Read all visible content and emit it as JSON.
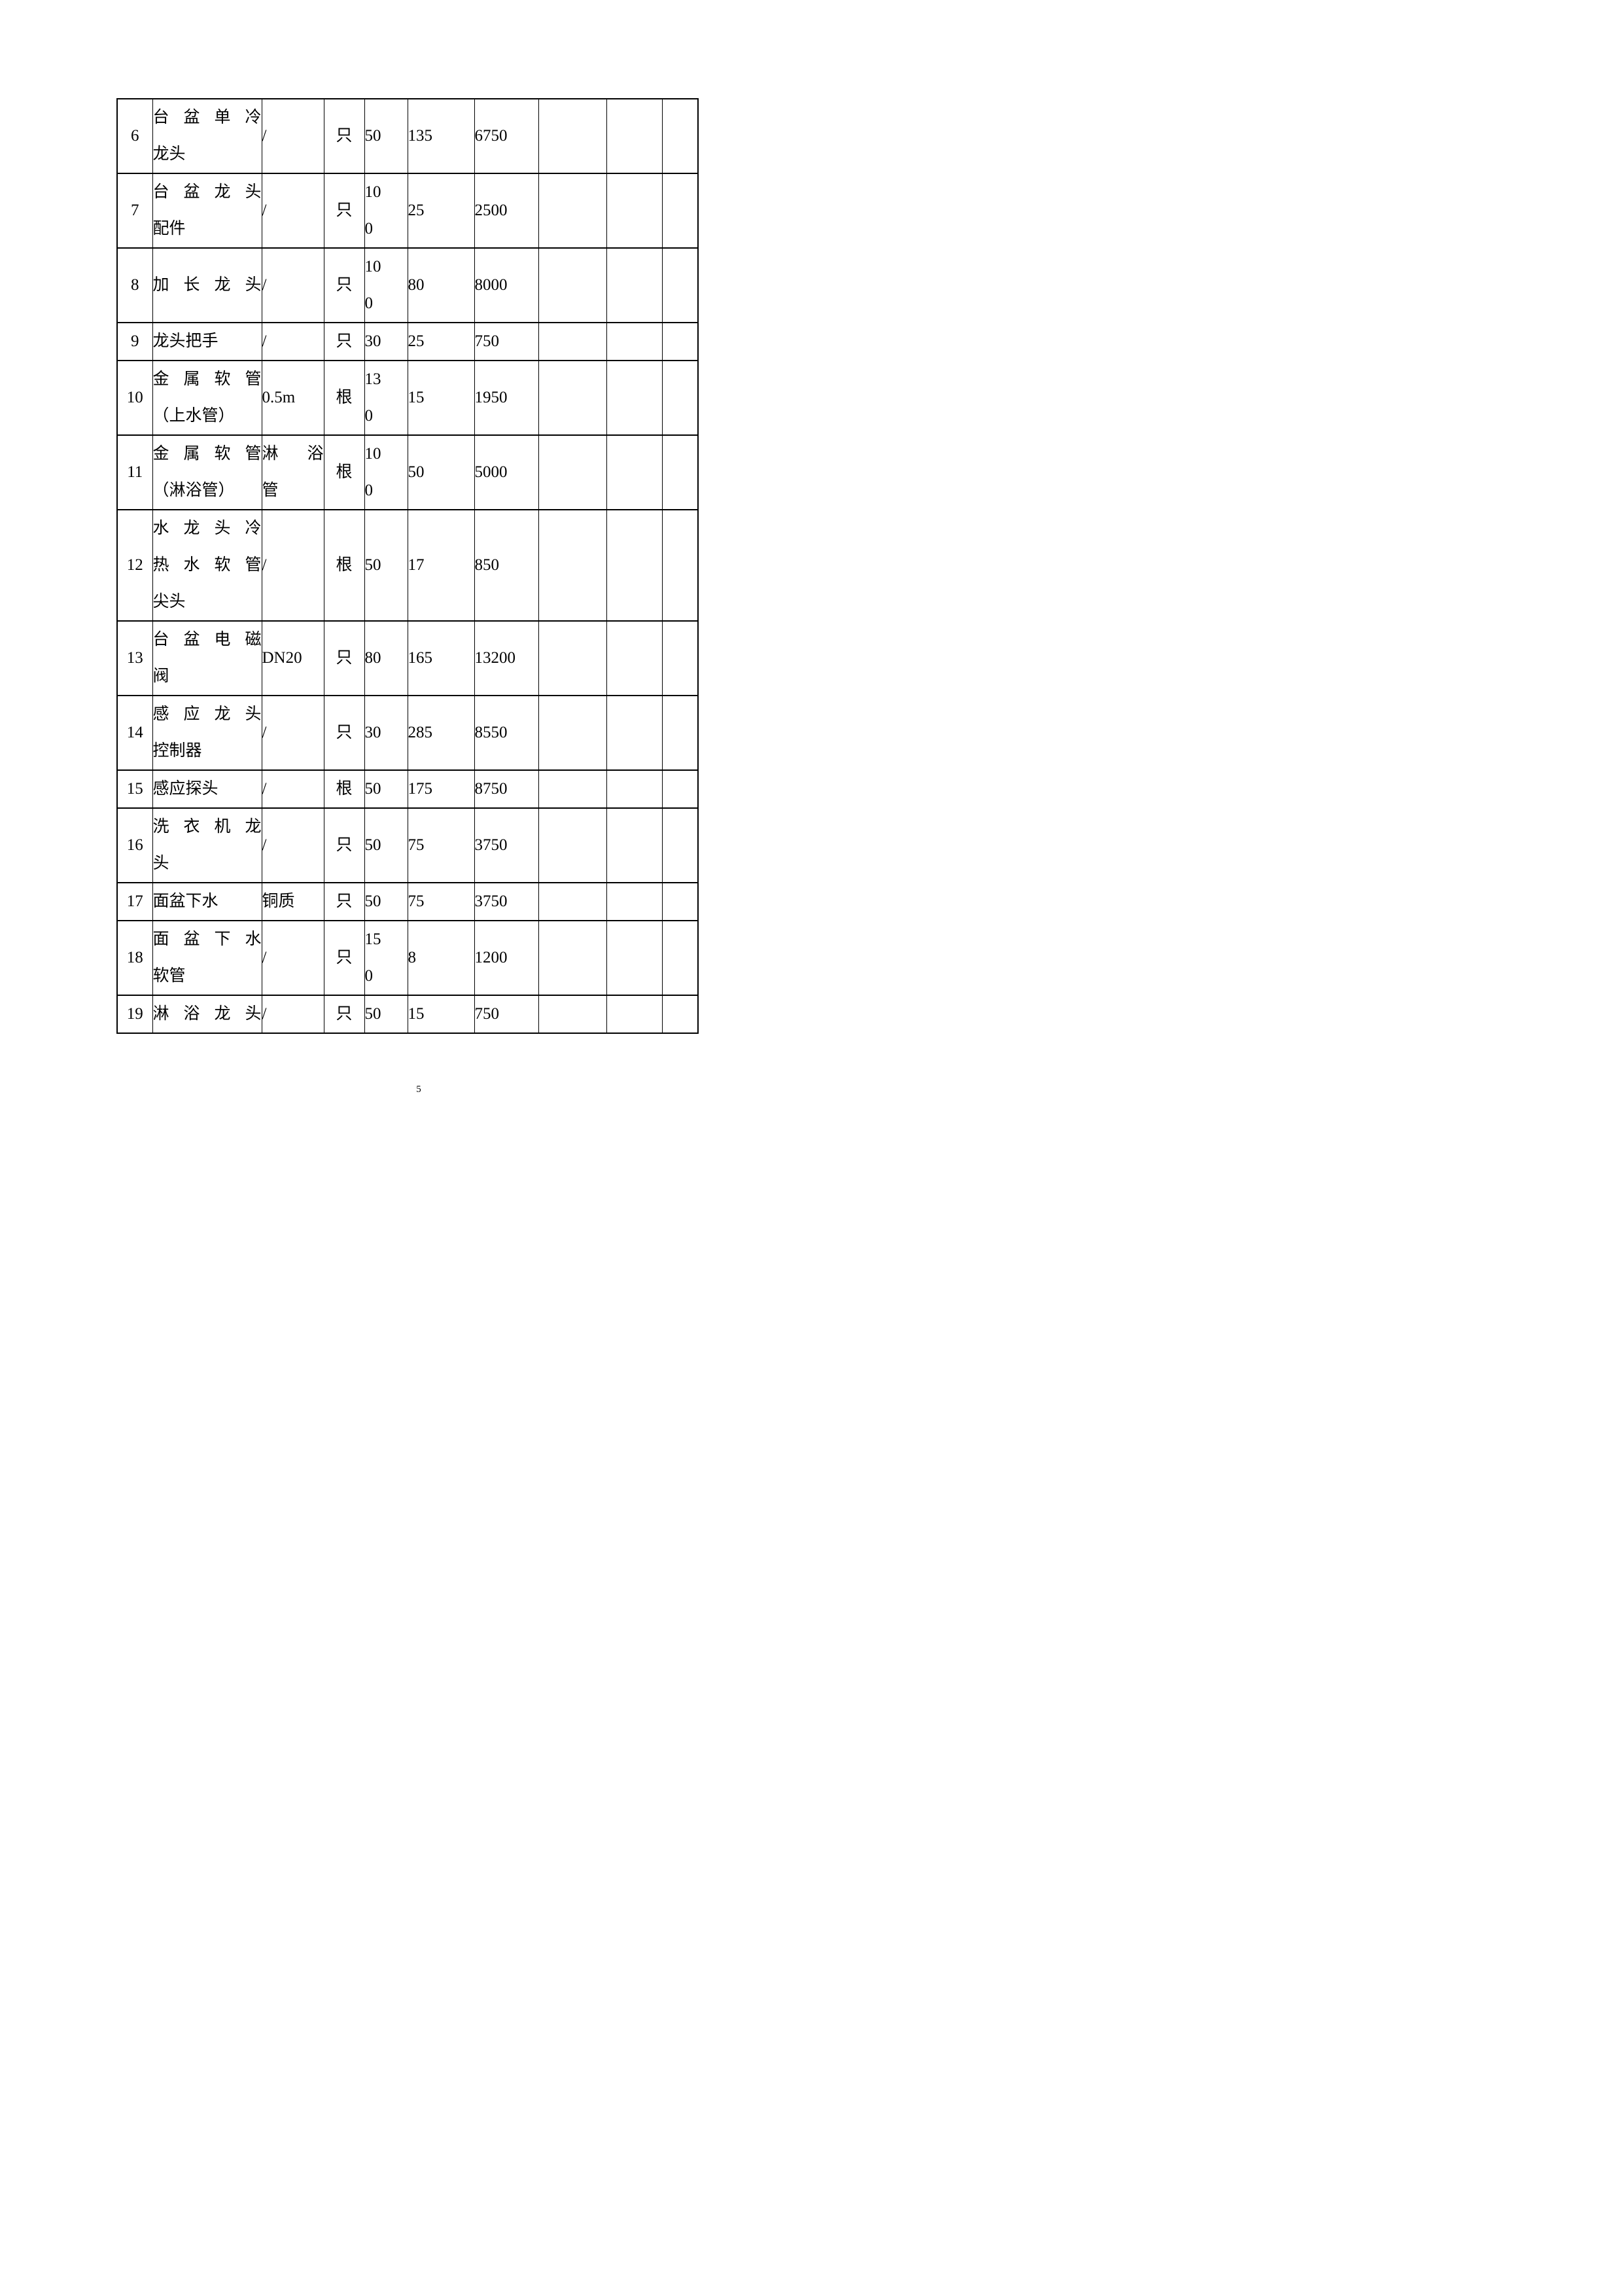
{
  "page": {
    "number": "5"
  },
  "table": {
    "rows": [
      {
        "no": "6",
        "name": [
          {
            "t": "台盆单冷",
            "j": true
          },
          {
            "t": "龙头"
          }
        ],
        "spec": [
          {
            "t": "/"
          }
        ],
        "unit": "只",
        "qty": [
          {
            "t": "50"
          }
        ],
        "unit_price": "135",
        "total": "6750"
      },
      {
        "no": "7",
        "name": [
          {
            "t": "台盆龙头",
            "j": true
          },
          {
            "t": "配件"
          }
        ],
        "spec": [
          {
            "t": "/"
          }
        ],
        "unit": "只",
        "qty": [
          {
            "t": "10"
          },
          {
            "t": "0"
          }
        ],
        "unit_price": "25",
        "total": "2500"
      },
      {
        "no": "8",
        "name": [
          {
            "t": "加长龙头",
            "j": true
          }
        ],
        "spec": [
          {
            "t": "/"
          }
        ],
        "unit": "只",
        "qty": [
          {
            "t": "10"
          },
          {
            "t": "0"
          }
        ],
        "unit_price": "80",
        "total": "8000"
      },
      {
        "no": "9",
        "name": [
          {
            "t": "龙头把手"
          }
        ],
        "spec": [
          {
            "t": "/"
          }
        ],
        "unit": "只",
        "qty": [
          {
            "t": "30"
          }
        ],
        "unit_price": "25",
        "total": "750"
      },
      {
        "no": "10",
        "name": [
          {
            "t": "金属软管",
            "j": true
          },
          {
            "t": "（上水管）"
          }
        ],
        "spec": [
          {
            "t": "0.5m"
          }
        ],
        "unit": "根",
        "qty": [
          {
            "t": "13"
          },
          {
            "t": "0"
          }
        ],
        "unit_price": "15",
        "total": "1950"
      },
      {
        "no": "11",
        "name": [
          {
            "t": "金属软管",
            "j": true
          },
          {
            "t": "（淋浴管）"
          }
        ],
        "spec": [
          {
            "t": "淋浴",
            "j": true
          },
          {
            "t": "管"
          }
        ],
        "unit": "根",
        "qty": [
          {
            "t": "10"
          },
          {
            "t": "0"
          }
        ],
        "unit_price": "50",
        "total": "5000"
      },
      {
        "no": "12",
        "name": [
          {
            "t": "水龙头冷",
            "j": true
          },
          {
            "t": "热水软管",
            "j": true
          },
          {
            "t": "尖头"
          }
        ],
        "spec": [
          {
            "t": "/"
          }
        ],
        "unit": "根",
        "qty": [
          {
            "t": "50"
          }
        ],
        "unit_price": "17",
        "total": "850"
      },
      {
        "no": "13",
        "name": [
          {
            "t": "台盆电磁",
            "j": true
          },
          {
            "t": "阀"
          }
        ],
        "spec": [
          {
            "t": "DN20"
          }
        ],
        "unit": "只",
        "qty": [
          {
            "t": "80"
          }
        ],
        "unit_price": "165",
        "total": "13200"
      },
      {
        "no": "14",
        "name": [
          {
            "t": "感应龙头",
            "j": true
          },
          {
            "t": "控制器"
          }
        ],
        "spec": [
          {
            "t": "/"
          }
        ],
        "unit": "只",
        "qty": [
          {
            "t": "30"
          }
        ],
        "unit_price": "285",
        "total": "8550"
      },
      {
        "no": "15",
        "name": [
          {
            "t": "感应探头"
          }
        ],
        "spec": [
          {
            "t": "/"
          }
        ],
        "unit": "根",
        "qty": [
          {
            "t": "50"
          }
        ],
        "unit_price": "175",
        "total": "8750"
      },
      {
        "no": "16",
        "name": [
          {
            "t": "洗衣机龙",
            "j": true
          },
          {
            "t": "头"
          }
        ],
        "spec": [
          {
            "t": "/"
          }
        ],
        "unit": "只",
        "qty": [
          {
            "t": "50"
          }
        ],
        "unit_price": "75",
        "total": "3750"
      },
      {
        "no": "17",
        "name": [
          {
            "t": "面盆下水"
          }
        ],
        "spec": [
          {
            "t": "铜质"
          }
        ],
        "unit": "只",
        "qty": [
          {
            "t": "50"
          }
        ],
        "unit_price": "75",
        "total": "3750"
      },
      {
        "no": "18",
        "name": [
          {
            "t": "面盆下水",
            "j": true
          },
          {
            "t": "软管"
          }
        ],
        "spec": [
          {
            "t": "/"
          }
        ],
        "unit": "只",
        "qty": [
          {
            "t": "15"
          },
          {
            "t": "0"
          }
        ],
        "unit_price": "8",
        "total": "1200"
      },
      {
        "no": "19",
        "name": [
          {
            "t": "淋浴龙头",
            "j": true
          }
        ],
        "spec": [
          {
            "t": "/"
          }
        ],
        "unit": "只",
        "qty": [
          {
            "t": "50"
          }
        ],
        "unit_price": "15",
        "total": "750"
      }
    ]
  }
}
